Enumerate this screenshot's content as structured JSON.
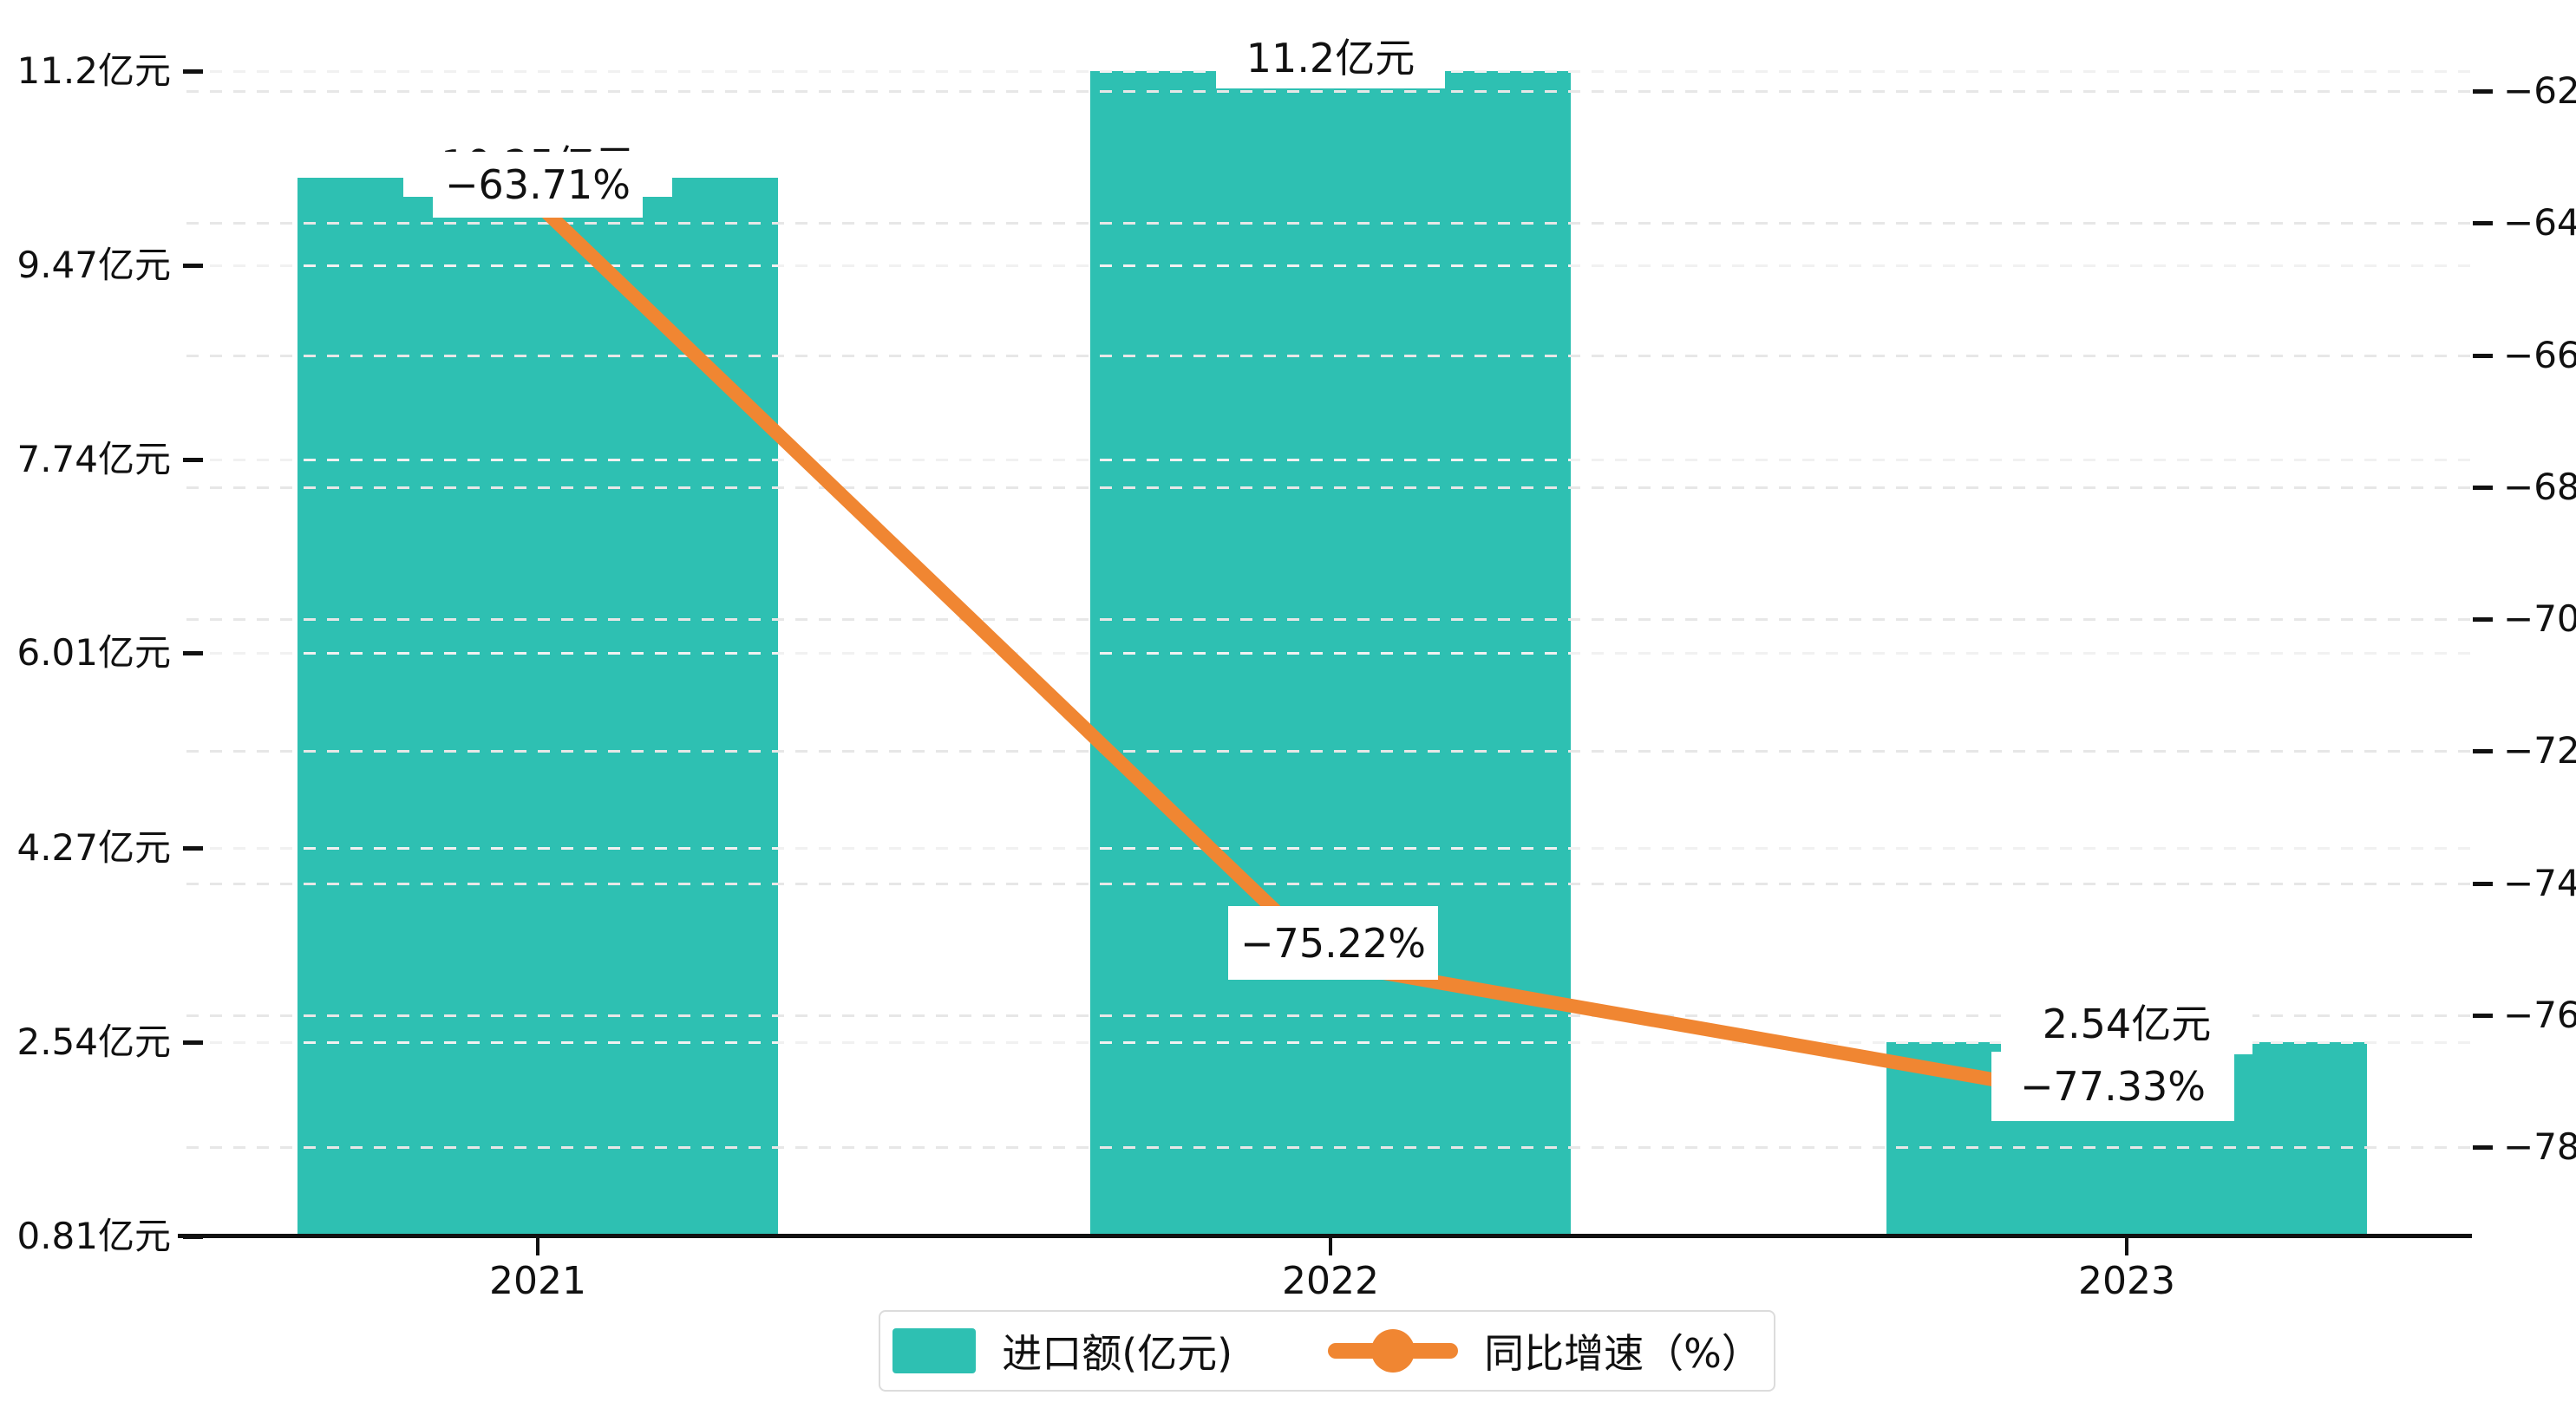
{
  "chart_data": {
    "type": "bar",
    "categories": [
      "2021",
      "2022",
      "2023"
    ],
    "series": [
      {
        "name": "进口额(亿元)",
        "kind": "bar",
        "axis": "left",
        "values": [
          10.25,
          11.2,
          2.54
        ],
        "point_labels": [
          "10.25亿元",
          "11.2亿元",
          "2.54亿元"
        ],
        "color": "#2EC0B2"
      },
      {
        "name": "同比增速（%）",
        "kind": "line",
        "axis": "right",
        "values": [
          -63.71,
          -75.22,
          -77.33
        ],
        "point_labels": [
          "−63.71%",
          "−75.22%",
          "−77.33%"
        ],
        "color": "#F08632"
      }
    ],
    "left_axis": {
      "tick_values": [
        11.2,
        9.47,
        7.74,
        6.01,
        4.27,
        2.54,
        0.81
      ],
      "tick_labels": [
        "11.2亿元",
        "9.47亿元",
        "7.74亿元",
        "6.01亿元",
        "4.27亿元",
        "2.54亿元",
        "0.81亿元"
      ],
      "range": [
        0.81,
        11.2
      ]
    },
    "right_axis": {
      "tick_values": [
        -62,
        -64,
        -66,
        -68,
        -70,
        -72,
        -74,
        -76,
        -78
      ],
      "tick_labels": [
        "−62",
        "−64",
        "−66",
        "−68",
        "−70",
        "−72",
        "−74",
        "−76",
        "−78"
      ],
      "range": [
        -78.67,
        -62
      ]
    },
    "grid": "dashed-horizontal",
    "legend_position": "bottom-center",
    "legend": [
      {
        "label": "进口额(亿元)",
        "marker": "square",
        "color": "#2EC0B2"
      },
      {
        "label": "同比增速（%）",
        "marker": "line-dot",
        "color": "#F08632"
      }
    ],
    "colors": {
      "bar": "#2EC0B2",
      "line": "#F08632",
      "axis": "#111111",
      "label_bg": "#ffffff"
    }
  }
}
